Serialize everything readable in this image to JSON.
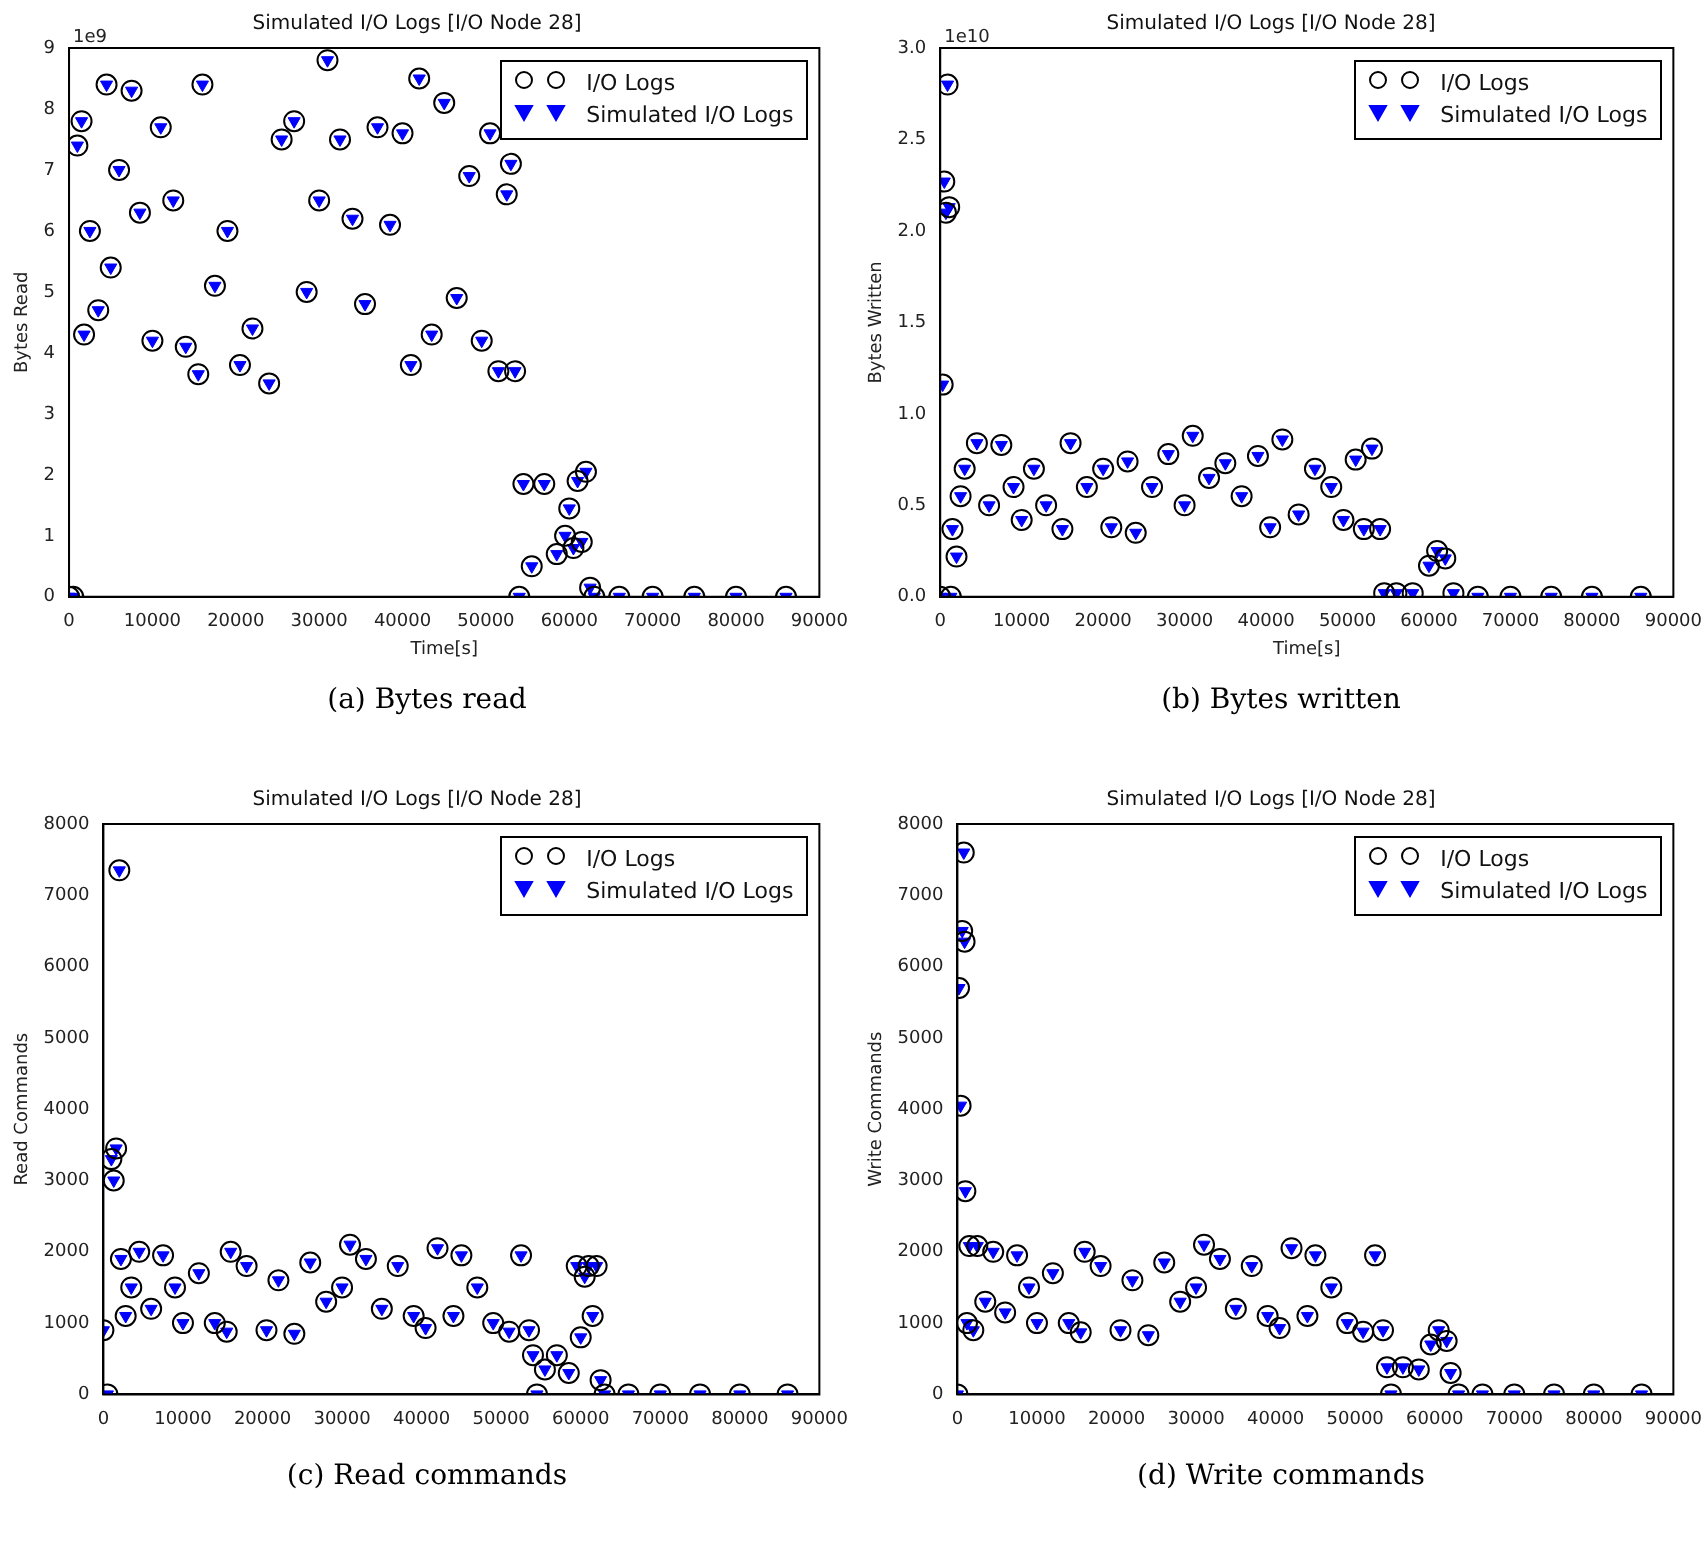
{
  "chart_data": [
    {
      "type": "scatter",
      "title": "Simulated I/O Logs [I/O Node 28]",
      "xlabel": "Time[s]",
      "ylabel": "Bytes Read",
      "annotations": [
        "1e9",
        "(a) Bytes read"
      ],
      "legend": "top right",
      "xlim": [
        0,
        90000
      ],
      "xticks": [
        0,
        10000,
        20000,
        30000,
        40000,
        50000,
        60000,
        70000,
        80000,
        90000
      ],
      "ylim": [
        0,
        9
      ],
      "yticks": [
        0,
        1,
        2,
        3,
        4,
        5,
        6,
        7,
        8,
        9
      ],
      "x": [
        0,
        500,
        1000,
        1500,
        1800,
        2500,
        3500,
        4500,
        5000,
        6000,
        7500,
        8500,
        10000,
        11000,
        12500,
        14000,
        15500,
        16000,
        17500,
        19000,
        20500,
        22000,
        24000,
        25500,
        27000,
        28500,
        30000,
        31000,
        32500,
        34000,
        35500,
        37000,
        38500,
        40000,
        41000,
        42000,
        43500,
        45000,
        46500,
        48000,
        49500,
        50500,
        51500,
        52500,
        53000,
        53500,
        54000,
        54500,
        55500,
        57000,
        58500,
        59500,
        60000,
        60500,
        61000,
        61500,
        62000,
        62500,
        63000,
        66000,
        70000,
        75000,
        80000,
        86000
      ],
      "series": [
        {
          "name": "I/O Logs",
          "color": "#000000",
          "marker": "circle",
          "values": [
            0,
            0,
            7.4,
            7.8,
            4.3,
            6.0,
            4.7,
            8.4,
            5.4,
            7.0,
            8.3,
            6.3,
            4.2,
            7.7,
            6.5,
            4.1,
            3.65,
            8.4,
            5.1,
            6.0,
            3.8,
            4.4,
            3.5,
            7.5,
            7.8,
            5.0,
            6.5,
            8.8,
            7.5,
            6.2,
            4.8,
            7.7,
            6.1,
            7.6,
            3.8,
            8.5,
            4.3,
            8.1,
            4.9,
            6.9,
            4.2,
            7.6,
            3.7,
            6.6,
            7.1,
            3.7,
            0,
            1.85,
            0.5,
            1.85,
            0.7,
            1.0,
            1.45,
            0.8,
            1.9,
            0.9,
            2.05,
            0.15,
            0,
            0,
            0,
            0,
            0,
            0
          ]
        },
        {
          "name": "Simulated I/O Logs",
          "color": "#0000ff",
          "marker": "triangle",
          "values": [
            0,
            0,
            7.4,
            7.8,
            4.3,
            6.0,
            4.7,
            8.4,
            5.4,
            7.0,
            8.3,
            6.3,
            4.2,
            7.7,
            6.5,
            4.1,
            3.65,
            8.4,
            5.1,
            6.0,
            3.8,
            4.4,
            3.5,
            7.5,
            7.8,
            5.0,
            6.5,
            8.8,
            7.5,
            6.2,
            4.8,
            7.7,
            6.1,
            7.6,
            3.8,
            8.5,
            4.3,
            8.1,
            4.9,
            6.9,
            4.2,
            7.6,
            3.7,
            6.6,
            7.1,
            3.7,
            0,
            1.85,
            0.5,
            1.85,
            0.7,
            1.0,
            1.45,
            0.8,
            1.9,
            0.9,
            2.05,
            0.15,
            0,
            0,
            0,
            0,
            0,
            0
          ]
        }
      ]
    },
    {
      "type": "scatter",
      "title": "Simulated I/O Logs [I/O Node 28]",
      "xlabel": "Time[s]",
      "ylabel": "Bytes Written",
      "annotations": [
        "1e10",
        "(b) Bytes written"
      ],
      "legend": "top right",
      "xlim": [
        0,
        90000
      ],
      "xticks": [
        0,
        10000,
        20000,
        30000,
        40000,
        50000,
        60000,
        70000,
        80000,
        90000
      ],
      "ylim": [
        0,
        3
      ],
      "yticks": [
        {
          "value": 0,
          "label": "0.0"
        },
        0.5,
        {
          "value": 1,
          "label": "1.0"
        },
        1.5,
        {
          "value": 2,
          "label": "2.0"
        },
        2.5,
        {
          "value": 3,
          "label": "3.0"
        }
      ],
      "x": [
        0,
        300,
        500,
        700,
        900,
        1100,
        1300,
        1500,
        2000,
        2500,
        3000,
        4500,
        6000,
        7500,
        9000,
        10000,
        11500,
        13000,
        15000,
        16000,
        18000,
        20000,
        21000,
        23000,
        24000,
        26000,
        28000,
        30000,
        31000,
        33000,
        35000,
        37000,
        39000,
        40500,
        42000,
        44000,
        46000,
        48000,
        49500,
        51000,
        52000,
        53000,
        54000,
        54500,
        56000,
        58000,
        60000,
        61000,
        62000,
        63000,
        66000,
        70000,
        75000,
        80000,
        86000
      ],
      "series": [
        {
          "name": "I/O Logs",
          "color": "#000000",
          "marker": "circle",
          "values": [
            0,
            1.16,
            2.27,
            2.1,
            2.8,
            2.13,
            0,
            0.37,
            0.22,
            0.55,
            0.7,
            0.84,
            0.5,
            0.83,
            0.6,
            0.42,
            0.7,
            0.5,
            0.37,
            0.84,
            0.6,
            0.7,
            0.38,
            0.74,
            0.35,
            0.6,
            0.78,
            0.5,
            0.88,
            0.65,
            0.73,
            0.55,
            0.77,
            0.38,
            0.86,
            0.45,
            0.7,
            0.6,
            0.42,
            0.75,
            0.37,
            0.81,
            0.37,
            0.02,
            0.02,
            0.02,
            0.17,
            0.25,
            0.21,
            0.02,
            0,
            0,
            0,
            0,
            0
          ]
        },
        {
          "name": "Simulated I/O Logs",
          "color": "#0000ff",
          "marker": "triangle",
          "values": [
            0,
            1.16,
            2.27,
            2.1,
            2.8,
            2.13,
            0,
            0.37,
            0.22,
            0.55,
            0.7,
            0.84,
            0.5,
            0.83,
            0.6,
            0.42,
            0.7,
            0.5,
            0.37,
            0.84,
            0.6,
            0.7,
            0.38,
            0.74,
            0.35,
            0.6,
            0.78,
            0.5,
            0.88,
            0.65,
            0.73,
            0.55,
            0.77,
            0.38,
            0.86,
            0.45,
            0.7,
            0.6,
            0.42,
            0.75,
            0.37,
            0.81,
            0.37,
            0.02,
            0.02,
            0.02,
            0.17,
            0.25,
            0.21,
            0.02,
            0,
            0,
            0,
            0,
            0
          ]
        }
      ]
    },
    {
      "type": "scatter",
      "title": "Simulated I/O Logs [I/O Node 28]",
      "ylabel": "Read Commands",
      "annotations": [
        "(c) Read commands"
      ],
      "legend": "top right",
      "xlim": [
        0,
        90000
      ],
      "xticks": [
        0,
        10000,
        20000,
        30000,
        40000,
        50000,
        60000,
        70000,
        80000,
        90000
      ],
      "ylim": [
        0,
        8000
      ],
      "yticks": [
        0,
        1000,
        2000,
        3000,
        4000,
        5000,
        6000,
        7000,
        8000
      ],
      "x": [
        0,
        500,
        1000,
        1300,
        1600,
        2000,
        2200,
        2800,
        3500,
        4500,
        6000,
        7500,
        9000,
        10000,
        12000,
        14000,
        15500,
        16000,
        18000,
        20500,
        22000,
        24000,
        26000,
        28000,
        30000,
        31000,
        33000,
        35000,
        37000,
        39000,
        40500,
        42000,
        44000,
        45000,
        47000,
        49000,
        51000,
        52500,
        53500,
        54000,
        54500,
        55500,
        57000,
        58500,
        59500,
        60000,
        60500,
        61000,
        61500,
        62000,
        62500,
        63000,
        66000,
        70000,
        75000,
        80000,
        86000
      ],
      "series": [
        {
          "name": "I/O Logs",
          "color": "#000000",
          "marker": "circle",
          "values": [
            900,
            0,
            3300,
            3000,
            3450,
            7350,
            1900,
            1100,
            1500,
            2000,
            1200,
            1950,
            1500,
            1000,
            1700,
            1000,
            880,
            2000,
            1800,
            900,
            1600,
            850,
            1850,
            1300,
            1500,
            2100,
            1900,
            1200,
            1800,
            1100,
            930,
            2050,
            1100,
            1950,
            1500,
            1000,
            880,
            1950,
            900,
            550,
            0,
            350,
            550,
            300,
            1800,
            800,
            1650,
            1800,
            1100,
            1800,
            200,
            0,
            0,
            0,
            0,
            0,
            0
          ]
        },
        {
          "name": "Simulated I/O Logs",
          "color": "#0000ff",
          "marker": "triangle",
          "values": [
            900,
            0,
            3300,
            3000,
            3450,
            7350,
            1900,
            1100,
            1500,
            2000,
            1200,
            1950,
            1500,
            1000,
            1700,
            1000,
            880,
            2000,
            1800,
            900,
            1600,
            850,
            1850,
            1300,
            1500,
            2100,
            1900,
            1200,
            1800,
            1100,
            930,
            2050,
            1100,
            1950,
            1500,
            1000,
            880,
            1950,
            900,
            550,
            0,
            350,
            550,
            300,
            1800,
            800,
            1650,
            1800,
            1100,
            1800,
            200,
            0,
            0,
            0,
            0,
            0,
            0
          ]
        }
      ]
    },
    {
      "type": "scatter",
      "title": "Simulated I/O Logs [I/O Node 28]",
      "ylabel": "Write Commands",
      "annotations": [
        "(d) Write commands"
      ],
      "legend": "top right",
      "xlim": [
        0,
        90000
      ],
      "xticks": [
        0,
        10000,
        20000,
        30000,
        40000,
        50000,
        60000,
        70000,
        80000,
        90000
      ],
      "ylim": [
        0,
        8000
      ],
      "yticks": [
        0,
        1000,
        2000,
        3000,
        4000,
        5000,
        6000,
        7000,
        8000
      ],
      "x": [
        0,
        200,
        400,
        600,
        800,
        900,
        1000,
        1200,
        1500,
        2000,
        2500,
        3500,
        4500,
        6000,
        7500,
        9000,
        10000,
        12000,
        14000,
        15500,
        16000,
        18000,
        20500,
        22000,
        24000,
        26000,
        28000,
        30000,
        31000,
        33000,
        35000,
        37000,
        39000,
        40500,
        42000,
        44000,
        45000,
        47000,
        49000,
        51000,
        52500,
        53500,
        54000,
        54500,
        56000,
        58000,
        59500,
        60500,
        61500,
        62000,
        63000,
        66000,
        70000,
        75000,
        80000,
        86000
      ],
      "series": [
        {
          "name": "I/O Logs",
          "color": "#000000",
          "marker": "circle",
          "values": [
            0,
            5700,
            4050,
            6500,
            7600,
            6350,
            2850,
            1000,
            2080,
            900,
            2080,
            1300,
            2000,
            1150,
            1950,
            1500,
            1000,
            1700,
            1000,
            870,
            2000,
            1800,
            900,
            1600,
            830,
            1850,
            1300,
            1500,
            2100,
            1900,
            1200,
            1800,
            1100,
            930,
            2050,
            1100,
            1950,
            1500,
            1000,
            880,
            1950,
            900,
            380,
            0,
            380,
            350,
            700,
            900,
            750,
            300,
            0,
            0,
            0,
            0,
            0,
            0
          ]
        },
        {
          "name": "Simulated I/O Logs",
          "color": "#0000ff",
          "marker": "triangle",
          "values": [
            0,
            5700,
            4050,
            6500,
            7600,
            6350,
            2850,
            1000,
            2080,
            900,
            2080,
            1300,
            2000,
            1150,
            1950,
            1500,
            1000,
            1700,
            1000,
            870,
            2000,
            1800,
            900,
            1600,
            830,
            1850,
            1300,
            1500,
            2100,
            1900,
            1200,
            1800,
            1100,
            930,
            2050,
            1100,
            1950,
            1500,
            1000,
            880,
            1950,
            900,
            380,
            0,
            380,
            350,
            700,
            900,
            750,
            300,
            0,
            0,
            0,
            0,
            0,
            0
          ]
        }
      ]
    }
  ]
}
